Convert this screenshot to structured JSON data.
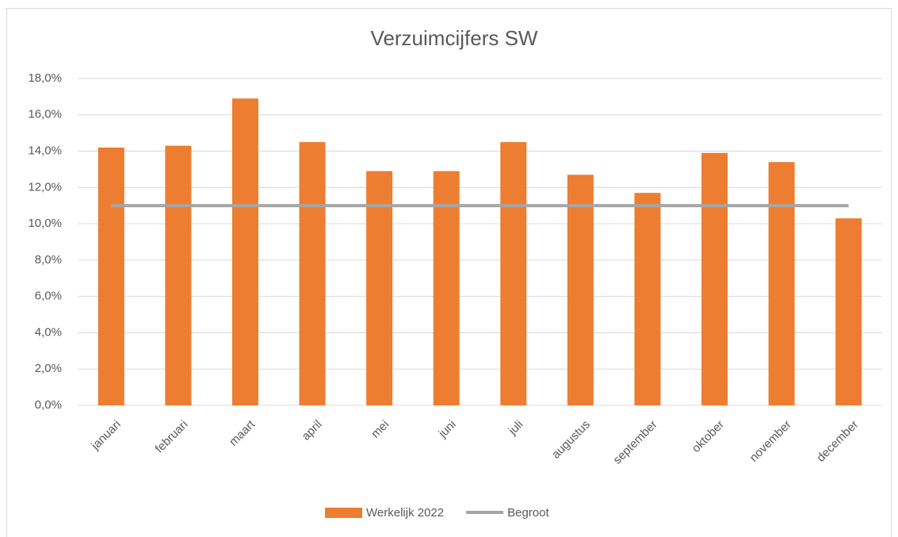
{
  "chart_data": {
    "type": "bar",
    "title": "Verzuimcijfers SW",
    "categories": [
      "januari",
      "februari",
      "maart",
      "april",
      "mei",
      "juni",
      "juli",
      "augustus",
      "september",
      "oktober",
      "november",
      "december"
    ],
    "series": [
      {
        "name": "Werkelijk 2022",
        "type": "bar",
        "color": "#ed7d31",
        "values": [
          14.2,
          14.3,
          16.9,
          14.5,
          12.9,
          12.9,
          14.5,
          12.7,
          11.7,
          13.9,
          13.4,
          10.3
        ]
      },
      {
        "name": "Begroot",
        "type": "line",
        "color": "#a5a5a5",
        "values": [
          11.0,
          11.0,
          11.0,
          11.0,
          11.0,
          11.0,
          11.0,
          11.0,
          11.0,
          11.0,
          11.0,
          11.0
        ]
      }
    ],
    "ylim": [
      0,
      18
    ],
    "yticks": [
      {
        "value": 0,
        "label": "0,0%"
      },
      {
        "value": 2,
        "label": "2,0%"
      },
      {
        "value": 4,
        "label": "4,0%"
      },
      {
        "value": 6,
        "label": "6,0%"
      },
      {
        "value": 8,
        "label": "8,0%"
      },
      {
        "value": 10,
        "label": "10,0%"
      },
      {
        "value": 12,
        "label": "12,0%"
      },
      {
        "value": 14,
        "label": "14,0%"
      },
      {
        "value": 16,
        "label": "16,0%"
      },
      {
        "value": 18,
        "label": "18,0%"
      }
    ],
    "grid": true,
    "legend": "bottom"
  }
}
